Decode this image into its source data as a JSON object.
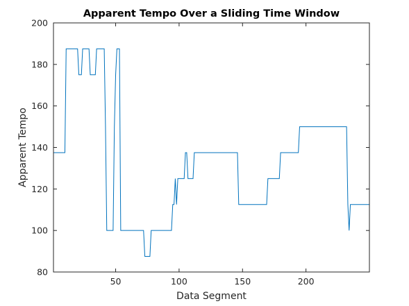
{
  "chart_data": {
    "type": "line",
    "title": "Apparent Tempo Over a Sliding Time Window",
    "xlabel": "Data Segment",
    "ylabel": "Apparent Tempo",
    "xlim": [
      1,
      250
    ],
    "ylim": [
      80,
      200
    ],
    "xticks": [
      50,
      100,
      150,
      200
    ],
    "yticks": [
      80,
      100,
      120,
      140,
      160,
      180,
      200
    ],
    "grid": false,
    "line_color": "#0072BD",
    "series": [
      {
        "x": [
          1,
          10,
          11,
          20,
          21,
          23,
          24,
          29,
          30,
          34,
          35,
          41,
          42,
          43,
          48,
          49,
          50,
          51,
          53,
          54,
          72,
          73,
          77,
          78,
          94,
          95,
          96,
          97,
          98,
          99,
          104,
          105,
          106,
          107,
          111,
          112,
          146,
          147,
          169,
          170,
          179,
          180,
          194,
          195,
          232,
          233,
          234,
          235,
          250
        ],
        "y": [
          137.5,
          137.5,
          187.5,
          187.5,
          175,
          175,
          187.5,
          187.5,
          175,
          175,
          187.5,
          187.5,
          150,
          100,
          100,
          150,
          175,
          187.5,
          187.5,
          100,
          100,
          87.5,
          87.5,
          100,
          100,
          112.5,
          112.5,
          125,
          112.5,
          125,
          125,
          137.5,
          137.5,
          125,
          125,
          137.5,
          137.5,
          112.5,
          112.5,
          125,
          125,
          137.5,
          137.5,
          150,
          150,
          112.5,
          100,
          112.5,
          112.5
        ]
      }
    ]
  }
}
